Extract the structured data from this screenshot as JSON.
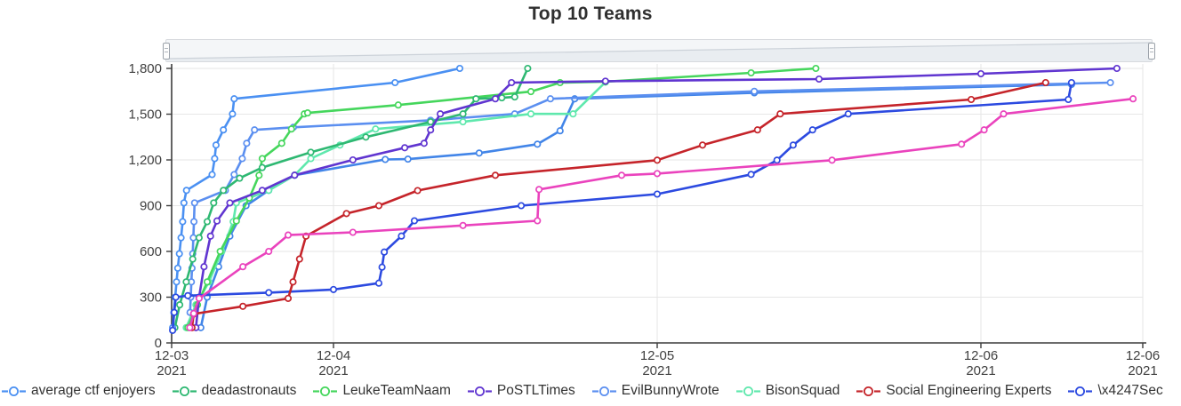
{
  "title": "Top 10 Teams",
  "controls": {
    "range_slider": {
      "present": true,
      "position": "top"
    }
  },
  "chart_data": {
    "type": "line",
    "title": "Top 10 Teams",
    "xlabel": "",
    "ylabel": "",
    "x_axis": {
      "kind": "time",
      "unit": "days since 2021-12-03 00:00",
      "range": [
        0.5,
        3.5
      ],
      "ticks": [
        {
          "t": 0.5,
          "line1": "12-03",
          "line2": "2021",
          "grid": false
        },
        {
          "t": 1.0,
          "line1": "12-04",
          "line2": "2021",
          "grid": true
        },
        {
          "t": 2.0,
          "line1": "12-05",
          "line2": "2021",
          "grid": true
        },
        {
          "t": 3.0,
          "line1": "12-06",
          "line2": "2021",
          "grid": true
        },
        {
          "t": 3.5,
          "line1": "12-06",
          "line2": "2021",
          "grid": true
        }
      ]
    },
    "y_axis": {
      "range": [
        0,
        1800
      ],
      "tick_values": [
        0,
        300,
        600,
        900,
        1200,
        1500,
        1800
      ],
      "tick_labels": [
        "0",
        "300",
        "600",
        "900",
        "1,200",
        "1,500",
        "1,800"
      ],
      "grid": true
    },
    "legend_position": "bottom",
    "series": [
      {
        "name": "",
        "color": "#4285e8",
        "in_legend": false,
        "points": [
          [
            0.59,
            100
          ],
          [
            0.61,
            300
          ],
          [
            0.645,
            500
          ],
          [
            0.68,
            700
          ],
          [
            0.73,
            900
          ],
          [
            0.8,
            1000
          ],
          [
            0.88,
            1100
          ],
          [
            1.16,
            1203
          ],
          [
            1.23,
            1205
          ],
          [
            1.45,
            1245
          ],
          [
            1.63,
            1303
          ],
          [
            1.7,
            1391
          ],
          [
            1.745,
            1601
          ],
          [
            2.3,
            1640
          ],
          [
            3.28,
            1695
          ]
        ]
      },
      {
        "name": "EvilBunnyWrote",
        "color": "#5b8ff0",
        "in_legend": true,
        "points": [
          [
            0.557,
            200
          ],
          [
            0.559,
            300
          ],
          [
            0.561,
            400
          ],
          [
            0.563,
            490
          ],
          [
            0.565,
            585
          ],
          [
            0.567,
            690
          ],
          [
            0.569,
            795
          ],
          [
            0.571,
            918
          ],
          [
            0.666,
            1000
          ],
          [
            0.693,
            1104
          ],
          [
            0.718,
            1209
          ],
          [
            0.732,
            1309
          ],
          [
            0.756,
            1397
          ],
          [
            0.876,
            1414
          ],
          [
            1.3,
            1460
          ],
          [
            1.56,
            1502
          ],
          [
            1.67,
            1601
          ],
          [
            2.3,
            1650
          ],
          [
            3.4,
            1707
          ]
        ]
      },
      {
        "name": "BisonSquad",
        "color": "#5fe8ad",
        "in_legend": true,
        "points": [
          [
            0.545,
            100
          ],
          [
            0.575,
            250
          ],
          [
            0.615,
            400
          ],
          [
            0.655,
            600
          ],
          [
            0.69,
            795
          ],
          [
            0.7,
            918
          ],
          [
            0.8,
            1000
          ],
          [
            0.88,
            1100
          ],
          [
            0.93,
            1209
          ],
          [
            1.02,
            1297
          ],
          [
            1.13,
            1403
          ],
          [
            1.4,
            1450
          ],
          [
            1.61,
            1502
          ],
          [
            1.74,
            1502
          ],
          [
            1.84,
            1710
          ]
        ]
      },
      {
        "name": "LeukeTeamNaam",
        "color": "#45d65c",
        "in_legend": true,
        "points": [
          [
            0.55,
            100
          ],
          [
            0.58,
            250
          ],
          [
            0.61,
            400
          ],
          [
            0.65,
            600
          ],
          [
            0.7,
            800
          ],
          [
            0.74,
            950
          ],
          [
            0.77,
            1099
          ],
          [
            0.78,
            1209
          ],
          [
            0.84,
            1309
          ],
          [
            0.87,
            1403
          ],
          [
            0.91,
            1502
          ],
          [
            0.92,
            1508
          ],
          [
            1.2,
            1560
          ],
          [
            1.61,
            1648
          ],
          [
            1.7,
            1707
          ],
          [
            1.84,
            1713
          ],
          [
            2.29,
            1771
          ],
          [
            2.49,
            1800
          ]
        ]
      },
      {
        "name": "deadastronauts",
        "color": "#2eb872",
        "in_legend": true,
        "points": [
          [
            0.51,
            100
          ],
          [
            0.525,
            250
          ],
          [
            0.545,
            400
          ],
          [
            0.565,
            550
          ],
          [
            0.585,
            690
          ],
          [
            0.61,
            795
          ],
          [
            0.63,
            918
          ],
          [
            0.66,
            1000
          ],
          [
            0.71,
            1080
          ],
          [
            0.78,
            1150
          ],
          [
            0.93,
            1250
          ],
          [
            1.1,
            1350
          ],
          [
            1.3,
            1450
          ],
          [
            1.4,
            1502
          ],
          [
            1.44,
            1601
          ],
          [
            1.52,
            1607
          ],
          [
            1.56,
            1613
          ],
          [
            1.6,
            1800
          ]
        ]
      },
      {
        "name": "average ctf enjoyers",
        "color": "#4a90f2",
        "in_legend": true,
        "points": [
          [
            0.503,
            100
          ],
          [
            0.507,
            200
          ],
          [
            0.511,
            300
          ],
          [
            0.515,
            400
          ],
          [
            0.519,
            490
          ],
          [
            0.524,
            585
          ],
          [
            0.529,
            690
          ],
          [
            0.534,
            795
          ],
          [
            0.538,
            918
          ],
          [
            0.546,
            1000
          ],
          [
            0.625,
            1104
          ],
          [
            0.633,
            1209
          ],
          [
            0.637,
            1297
          ],
          [
            0.66,
            1397
          ],
          [
            0.688,
            1502
          ],
          [
            0.693,
            1601
          ],
          [
            1.19,
            1707
          ],
          [
            1.39,
            1800
          ]
        ]
      },
      {
        "name": "PoSTLTimes",
        "color": "#6035d0",
        "in_legend": true,
        "points": [
          [
            0.575,
            100
          ],
          [
            0.585,
            300
          ],
          [
            0.6,
            500
          ],
          [
            0.62,
            700
          ],
          [
            0.64,
            800
          ],
          [
            0.68,
            918
          ],
          [
            0.78,
            1000
          ],
          [
            0.88,
            1100
          ],
          [
            1.06,
            1200
          ],
          [
            1.22,
            1280
          ],
          [
            1.28,
            1309
          ],
          [
            1.3,
            1397
          ],
          [
            1.33,
            1502
          ],
          [
            1.5,
            1601
          ],
          [
            1.55,
            1707
          ],
          [
            1.84,
            1716
          ],
          [
            2.5,
            1730
          ],
          [
            3.0,
            1765
          ],
          [
            3.42,
            1800
          ]
        ]
      },
      {
        "name": "\\x4247Sec",
        "color": "#2c4ae0",
        "in_legend": true,
        "points": [
          [
            0.503,
            82
          ],
          [
            0.508,
            200
          ],
          [
            0.513,
            300
          ],
          [
            0.55,
            310
          ],
          [
            0.8,
            330
          ],
          [
            1.0,
            350
          ],
          [
            1.14,
            392
          ],
          [
            1.15,
            497
          ],
          [
            1.157,
            596
          ],
          [
            1.21,
            701
          ],
          [
            1.25,
            801
          ],
          [
            1.58,
            900
          ],
          [
            2.0,
            976
          ],
          [
            2.29,
            1105
          ],
          [
            2.37,
            1198
          ],
          [
            2.42,
            1297
          ],
          [
            2.48,
            1397
          ],
          [
            2.59,
            1502
          ],
          [
            3.27,
            1596
          ],
          [
            3.28,
            1707
          ]
        ]
      },
      {
        "name": "Social Engineering Experts",
        "color": "#c5242a",
        "in_legend": true,
        "points": [
          [
            0.563,
            100
          ],
          [
            0.568,
            190
          ],
          [
            0.72,
            240
          ],
          [
            0.86,
            292
          ],
          [
            0.875,
            400
          ],
          [
            0.895,
            550
          ],
          [
            0.915,
            700
          ],
          [
            1.04,
            848
          ],
          [
            1.14,
            900
          ],
          [
            1.26,
            999
          ],
          [
            1.5,
            1099
          ],
          [
            2.0,
            1198
          ],
          [
            2.14,
            1297
          ],
          [
            2.31,
            1397
          ],
          [
            2.38,
            1502
          ],
          [
            2.97,
            1596
          ],
          [
            3.2,
            1707
          ]
        ]
      },
      {
        "name": "",
        "color": "#ea43bd",
        "in_legend": false,
        "points": [
          [
            0.556,
            100
          ],
          [
            0.568,
            193
          ],
          [
            0.585,
            292
          ],
          [
            0.72,
            500
          ],
          [
            0.8,
            600
          ],
          [
            0.86,
            707
          ],
          [
            1.06,
            725
          ],
          [
            1.4,
            770
          ],
          [
            1.63,
            801
          ],
          [
            1.635,
            1006
          ],
          [
            1.89,
            1099
          ],
          [
            2.0,
            1110
          ],
          [
            2.54,
            1198
          ],
          [
            2.94,
            1303
          ],
          [
            3.01,
            1397
          ],
          [
            3.07,
            1502
          ],
          [
            3.47,
            1601
          ]
        ]
      }
    ],
    "legend_order": [
      "average ctf enjoyers",
      "deadastronauts",
      "LeukeTeamNaam",
      "PoSTLTimes",
      "EvilBunnyWrote",
      "BisonSquad",
      "Social Engineering Experts",
      "\\x4247Sec"
    ]
  },
  "style": {
    "axis_color": "#3c3c3c",
    "grid_color": "#e6e6e6",
    "label_color": "#404040",
    "title_color": "#2f2f2f"
  }
}
